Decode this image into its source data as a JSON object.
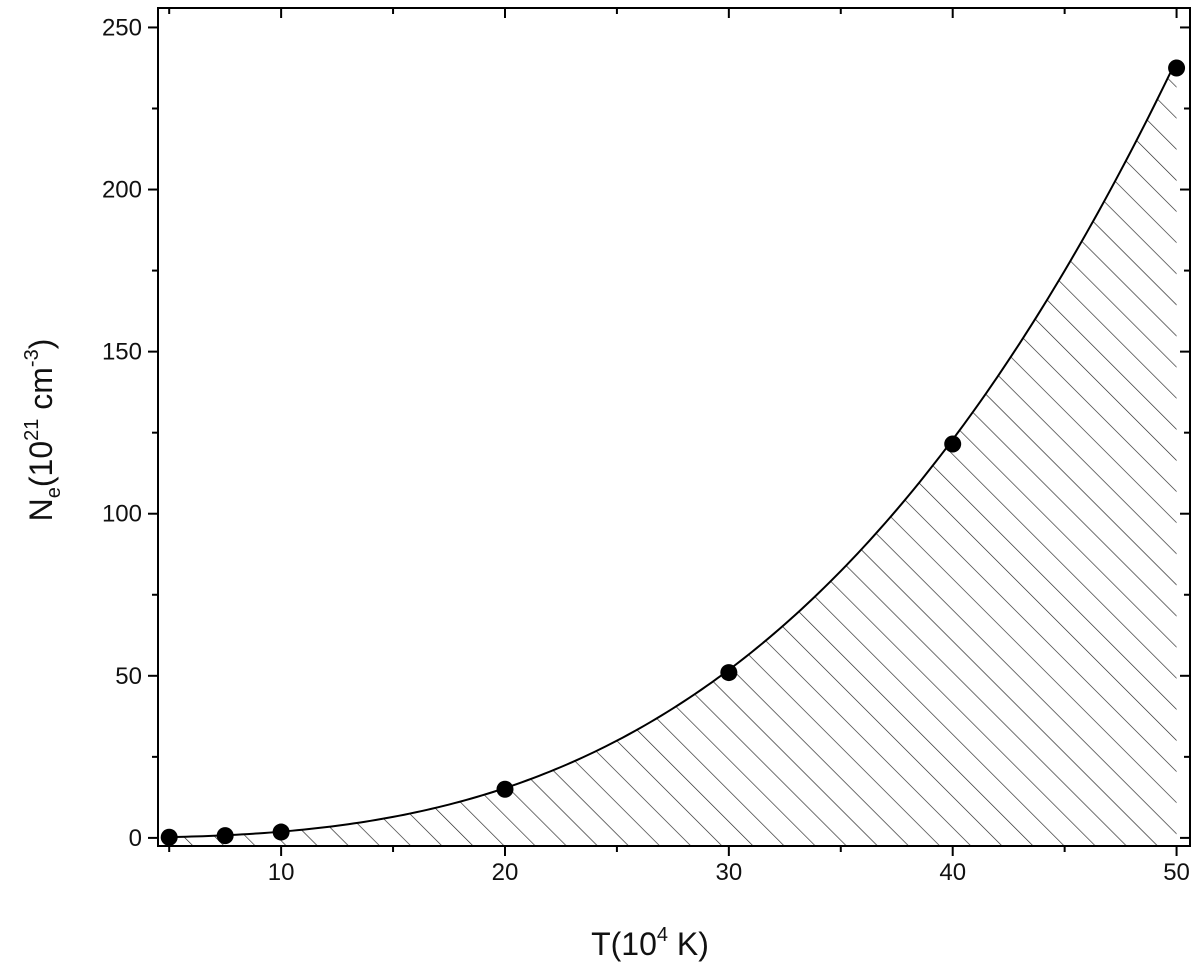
{
  "chart_data": {
    "type": "scatter",
    "xlim": [
      4.5,
      50.6
    ],
    "ylim": [
      -2.5,
      256
    ],
    "x_ticks": [
      10,
      20,
      30,
      40,
      50
    ],
    "x_minor_ticks": [
      5,
      15,
      25,
      35,
      45
    ],
    "y_ticks": [
      0,
      50,
      100,
      150,
      200,
      250
    ],
    "y_minor_ticks": [
      25,
      75,
      125,
      175,
      225
    ],
    "x_tick_labels": [
      "10",
      "20",
      "30",
      "40",
      "50"
    ],
    "y_tick_labels": [
      "0",
      "50",
      "100",
      "150",
      "200",
      "250"
    ],
    "xlabel": {
      "main": "T(10",
      "sup": "4",
      "rest": " K)"
    },
    "ylabel": {
      "main": "N",
      "sub": "e",
      "open": "(10",
      "sup1": "21",
      "mid": " cm",
      "sup2": "-3",
      "close": ")"
    },
    "points": [
      {
        "x": 5,
        "y": 0.2
      },
      {
        "x": 7.5,
        "y": 0.7
      },
      {
        "x": 10,
        "y": 1.8
      },
      {
        "x": 20,
        "y": 15
      },
      {
        "x": 30,
        "y": 51
      },
      {
        "x": 40,
        "y": 121.5
      },
      {
        "x": 50,
        "y": 237.5
      }
    ],
    "fit_curve": {
      "type": "power",
      "coefficient": 0.00192,
      "exponent": 3.0,
      "shaded": "hatched region under curve"
    },
    "colors": {
      "points": "#000000",
      "curve": "#000000",
      "hatch": "#222222",
      "axes": "#000000"
    },
    "grid": false,
    "legend": "none"
  }
}
